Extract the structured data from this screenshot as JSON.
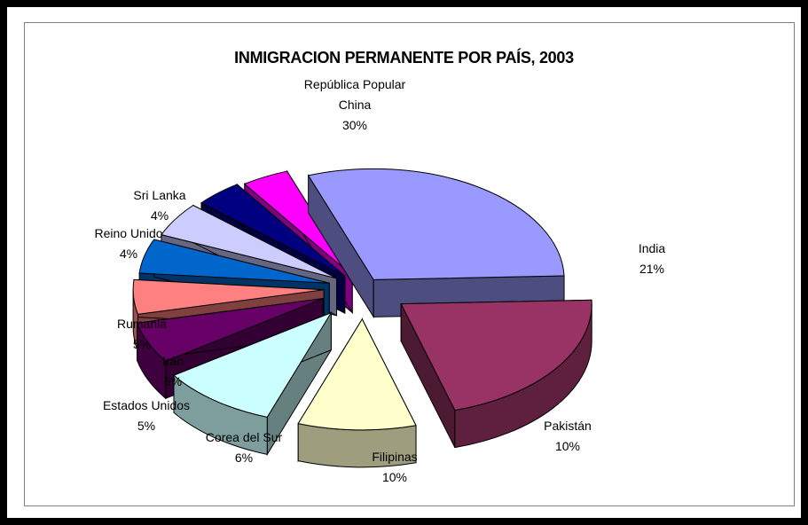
{
  "chart_data": {
    "type": "pie",
    "title": "INMIGRACION PERMANENTE POR PAÍS, 2003",
    "slices": [
      {
        "label": [
          "República Popular",
          "China"
        ],
        "name": "República Popular China",
        "value": 30,
        "pct": "30%",
        "color": "#9999ff"
      },
      {
        "label": [
          "India"
        ],
        "name": "India",
        "value": 21,
        "pct": "21%",
        "color": "#993366"
      },
      {
        "label": [
          "Pakistán"
        ],
        "name": "Pakistán",
        "value": 10,
        "pct": "10%",
        "color": "#ffffcc"
      },
      {
        "label": [
          "Filipinas"
        ],
        "name": "Filipinas",
        "value": 10,
        "pct": "10%",
        "color": "#ccffff"
      },
      {
        "label": [
          "Corea del Sur"
        ],
        "name": "Corea del Sur",
        "value": 6,
        "pct": "6%",
        "color": "#660066"
      },
      {
        "label": [
          "Estados Unidos"
        ],
        "name": "Estados Unidos",
        "value": 5,
        "pct": "5%",
        "color": "#ff8080"
      },
      {
        "label": [
          "Irán"
        ],
        "name": "Irán",
        "value": 5,
        "pct": "5%",
        "color": "#0066cc"
      },
      {
        "label": [
          "Rumania"
        ],
        "name": "Rumania",
        "value": 5,
        "pct": "5%",
        "color": "#ccccff"
      },
      {
        "label": [
          "Reino Unido"
        ],
        "name": "Reino Unido",
        "value": 4,
        "pct": "4%",
        "color": "#000080"
      },
      {
        "label": [
          "Sri Lanka"
        ],
        "name": "Sri Lanka",
        "value": 4,
        "pct": "4%",
        "color": "#ff00ff"
      }
    ],
    "exploded": true,
    "three_d": true,
    "legend": "none"
  }
}
